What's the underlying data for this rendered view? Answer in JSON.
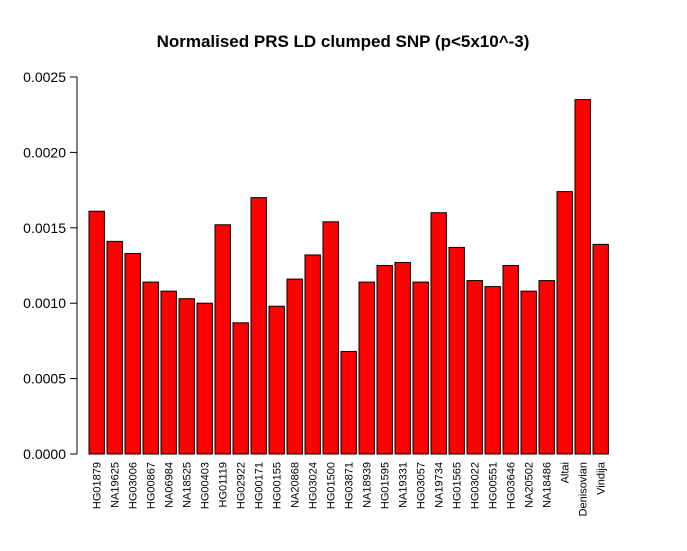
{
  "chart_data": {
    "type": "bar",
    "title": "Normalised PRS LD clumped SNP (p<5x10^-3)",
    "xlabel": "",
    "ylabel": "",
    "ylim": [
      0,
      0.0025
    ],
    "yticks": [
      "0.0000",
      "0.0005",
      "0.0010",
      "0.0015",
      "0.0020",
      "0.0025"
    ],
    "bar_color": "#ff0000",
    "bar_border": "#000000",
    "legend": "none",
    "grid": false,
    "categories": [
      "HG01879",
      "NA19625",
      "HG03006",
      "HG00867",
      "NA06984",
      "NA18525",
      "HG00403",
      "HG01119",
      "HG02922",
      "HG00171",
      "HG00155",
      "NA20868",
      "HG03024",
      "HG01500",
      "HG03871",
      "NA18939",
      "HG01595",
      "NA19331",
      "HG03057",
      "NA19734",
      "HG01565",
      "HG03022",
      "HG00551",
      "HG03646",
      "NA20502",
      "NA18486",
      "Altai",
      "Denisovian",
      "Vindija"
    ],
    "values": [
      0.00161,
      0.00141,
      0.00133,
      0.00114,
      0.00108,
      0.00103,
      0.001,
      0.00152,
      0.00087,
      0.0017,
      0.00098,
      0.00116,
      0.00132,
      0.00154,
      0.00068,
      0.00114,
      0.00125,
      0.00127,
      0.00114,
      0.0016,
      0.00137,
      0.00115,
      0.00111,
      0.00125,
      0.00108,
      0.00115,
      0.00174,
      0.00235,
      0.00139
    ]
  }
}
